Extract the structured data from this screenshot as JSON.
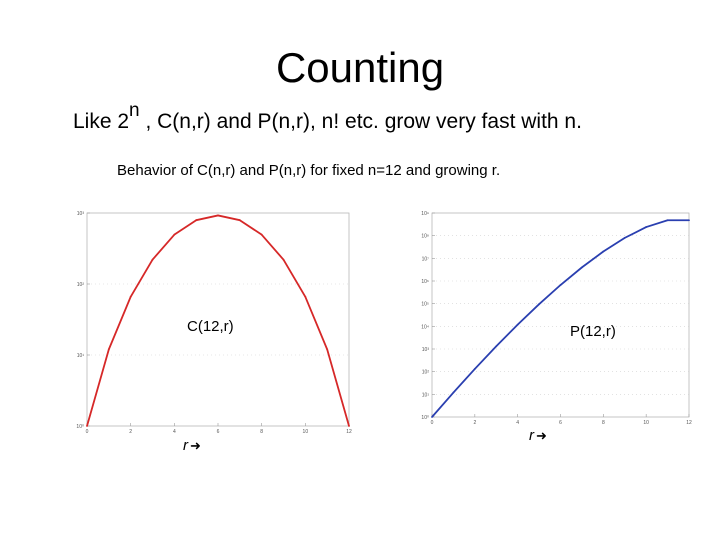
{
  "slide": {
    "title": "Counting",
    "subtitle_pre": "Like 2",
    "subtitle_sup": "n",
    "subtitle_post": " , C(n,r) and P(n,r), n! etc. grow very fast with n.",
    "caption": "Behavior of C(n,r) and P(n,r) for fixed n=12 and growing r."
  },
  "chart_data": [
    {
      "type": "line",
      "label": "C(12,r)",
      "axis_note": "r",
      "arrow_icon": "right-arrow-icon",
      "x": [
        0,
        1,
        2,
        3,
        4,
        5,
        6,
        7,
        8,
        9,
        10,
        11,
        12
      ],
      "series": [
        {
          "name": "",
          "color": "#d62828",
          "values": [
            1,
            12,
            66,
            220,
            495,
            792,
            924,
            792,
            495,
            220,
            66,
            12,
            1
          ]
        }
      ],
      "x_ticks": [
        0,
        2,
        4,
        6,
        8,
        10,
        12
      ],
      "x_tick_labels": [
        "0",
        "2",
        "4",
        "6",
        "8",
        "10",
        "12"
      ],
      "xlim": [
        0,
        12
      ],
      "y_scale": "log",
      "ylim": [
        1,
        1000
      ],
      "y_ticks": [
        1,
        10,
        100,
        1000
      ],
      "y_tick_labels": [
        "10⁰",
        "10¹",
        "10²",
        "10³"
      ],
      "grid": true
    },
    {
      "type": "line",
      "label": "P(12,r)",
      "axis_note": "r",
      "arrow_icon": "right-arrow-icon",
      "x": [
        0,
        1,
        2,
        3,
        4,
        5,
        6,
        7,
        8,
        9,
        10,
        11,
        12
      ],
      "series": [
        {
          "name": "",
          "color": "#2a3fb0",
          "values": [
            1,
            12,
            132,
            1320,
            11880,
            95040,
            665280,
            3991680,
            19958400,
            79833600,
            239500800,
            479001600,
            479001600
          ]
        }
      ],
      "x_ticks": [
        0,
        2,
        4,
        6,
        8,
        10,
        12
      ],
      "x_tick_labels": [
        "0",
        "2",
        "4",
        "6",
        "8",
        "10",
        "12"
      ],
      "xlim": [
        0,
        12
      ],
      "y_scale": "log",
      "ylim": [
        1,
        1000000000
      ],
      "y_ticks": [
        1,
        10,
        100,
        1000,
        10000,
        100000,
        1000000,
        10000000,
        100000000,
        1000000000
      ],
      "y_tick_labels": [
        "10⁰",
        "10¹",
        "10²",
        "10³",
        "10⁴",
        "10⁵",
        "10⁶",
        "10⁷",
        "10⁸",
        "10⁹"
      ],
      "grid": true
    }
  ]
}
